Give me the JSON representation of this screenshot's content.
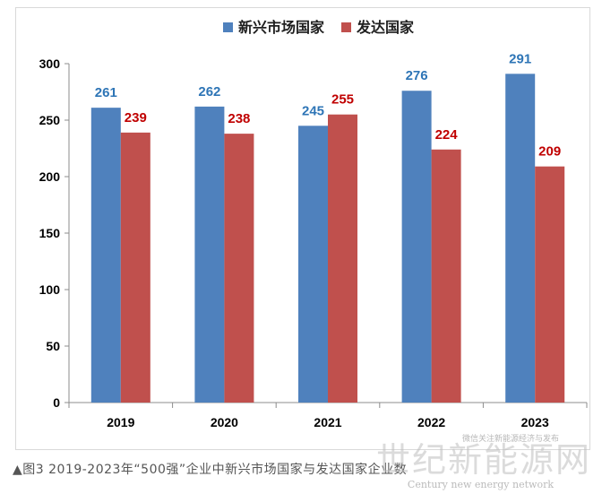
{
  "chart_data": {
    "type": "bar",
    "categories": [
      "2019",
      "2020",
      "2021",
      "2022",
      "2023"
    ],
    "series": [
      {
        "name": "新兴市场国家",
        "values": [
          261,
          262,
          245,
          276,
          291
        ],
        "color": "#4f81bd",
        "label_color": "#2e75b6"
      },
      {
        "name": "发达国家",
        "values": [
          239,
          238,
          255,
          224,
          209
        ],
        "color": "#c0504d",
        "label_color": "#c00000"
      }
    ],
    "ylim": [
      0,
      300
    ],
    "yticks": [
      0,
      50,
      100,
      150,
      200,
      250,
      300
    ],
    "grid": false,
    "legend_position": "top"
  },
  "caption": "▲图3 2019-2023年“500强”企业中新兴市场国家与发达国家企业数",
  "watermark": {
    "main": "世纪新能源网",
    "english": "Century new energy network",
    "small": "微信关注新能源经济与发布"
  }
}
